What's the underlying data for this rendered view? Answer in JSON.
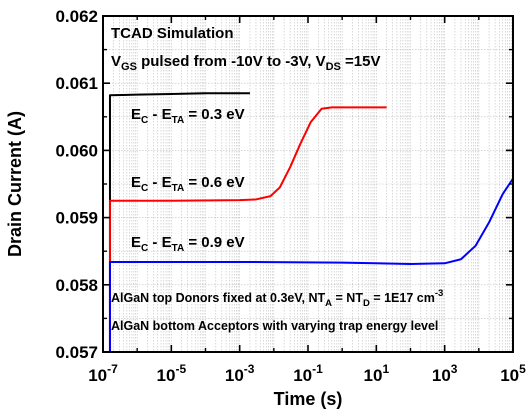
{
  "chart_data": {
    "type": "line",
    "xlabel": "Time (s)",
    "ylabel": "Drain Current (A)",
    "xscale": "log",
    "xlim": [
      1e-07,
      100000
    ],
    "ylim": [
      0.057,
      0.062
    ],
    "grid": true,
    "x_ticks": [
      {
        "value": 1e-07,
        "base": "10",
        "exp": "-7"
      },
      {
        "value": 1e-05,
        "base": "10",
        "exp": "-5"
      },
      {
        "value": 0.001,
        "base": "10",
        "exp": "-3"
      },
      {
        "value": 0.1,
        "base": "10",
        "exp": "-1"
      },
      {
        "value": 10,
        "base": "10",
        "exp": "1"
      },
      {
        "value": 1000,
        "base": "10",
        "exp": "3"
      },
      {
        "value": 100000,
        "base": "10",
        "exp": "5"
      }
    ],
    "y_ticks": [
      {
        "value": 0.057,
        "label": "0.057"
      },
      {
        "value": 0.058,
        "label": "0.058"
      },
      {
        "value": 0.059,
        "label": "0.059"
      },
      {
        "value": 0.06,
        "label": "0.060"
      },
      {
        "value": 0.061,
        "label": "0.061"
      },
      {
        "value": 0.062,
        "label": "0.062"
      }
    ],
    "series": [
      {
        "name_parts": [
          "E",
          "C",
          " - E",
          "TA",
          " = 0.3 eV"
        ],
        "color": "#000000",
        "points": [
          [
            1.6e-07,
            0.057
          ],
          [
            1.6e-07,
            0.06082
          ],
          [
            1e-06,
            0.06083
          ],
          [
            1e-05,
            0.06084
          ],
          [
            0.0001,
            0.06085
          ],
          [
            0.001,
            0.06085
          ],
          [
            0.002,
            0.06085
          ]
        ]
      },
      {
        "name_parts": [
          "E",
          "C",
          " - E",
          "TA",
          " = 0.6 eV"
        ],
        "color": "#ff0000",
        "points": [
          [
            1.6e-07,
            0.057
          ],
          [
            1.6e-07,
            0.05925
          ],
          [
            1e-05,
            0.05925
          ],
          [
            0.001,
            0.05926
          ],
          [
            0.003,
            0.05927
          ],
          [
            0.008,
            0.05932
          ],
          [
            0.015,
            0.05945
          ],
          [
            0.03,
            0.05975
          ],
          [
            0.06,
            0.0601
          ],
          [
            0.12,
            0.06042
          ],
          [
            0.25,
            0.06062
          ],
          [
            0.5,
            0.06064
          ],
          [
            1,
            0.06064
          ],
          [
            20,
            0.06064
          ]
        ]
      },
      {
        "name_parts": [
          "E",
          "C",
          " - E",
          "TA",
          " = 0.9 eV"
        ],
        "color": "#0000ff",
        "points": [
          [
            1.6e-07,
            0.057
          ],
          [
            1.6e-07,
            0.05834
          ],
          [
            1e-05,
            0.05834
          ],
          [
            0.001,
            0.05834
          ],
          [
            1,
            0.05833
          ],
          [
            100,
            0.05831
          ],
          [
            1000,
            0.05832
          ],
          [
            3000,
            0.05838
          ],
          [
            8000,
            0.05858
          ],
          [
            20000,
            0.05893
          ],
          [
            50000,
            0.05935
          ],
          [
            100000,
            0.05958
          ]
        ]
      }
    ],
    "annotations": {
      "line1": "TCAD Simulation",
      "line2_parts": [
        "V",
        "GS",
        " pulsed from -10V to -3V, V",
        "DS",
        " =15V"
      ],
      "line3_parts": [
        "AlGaN top Donors fixed at 0.3eV, NT",
        "A",
        " = NT",
        "D",
        " = 1E17 cm",
        "-3"
      ],
      "line4": "AlGaN bottom Acceptors with varying trap energy level"
    }
  }
}
